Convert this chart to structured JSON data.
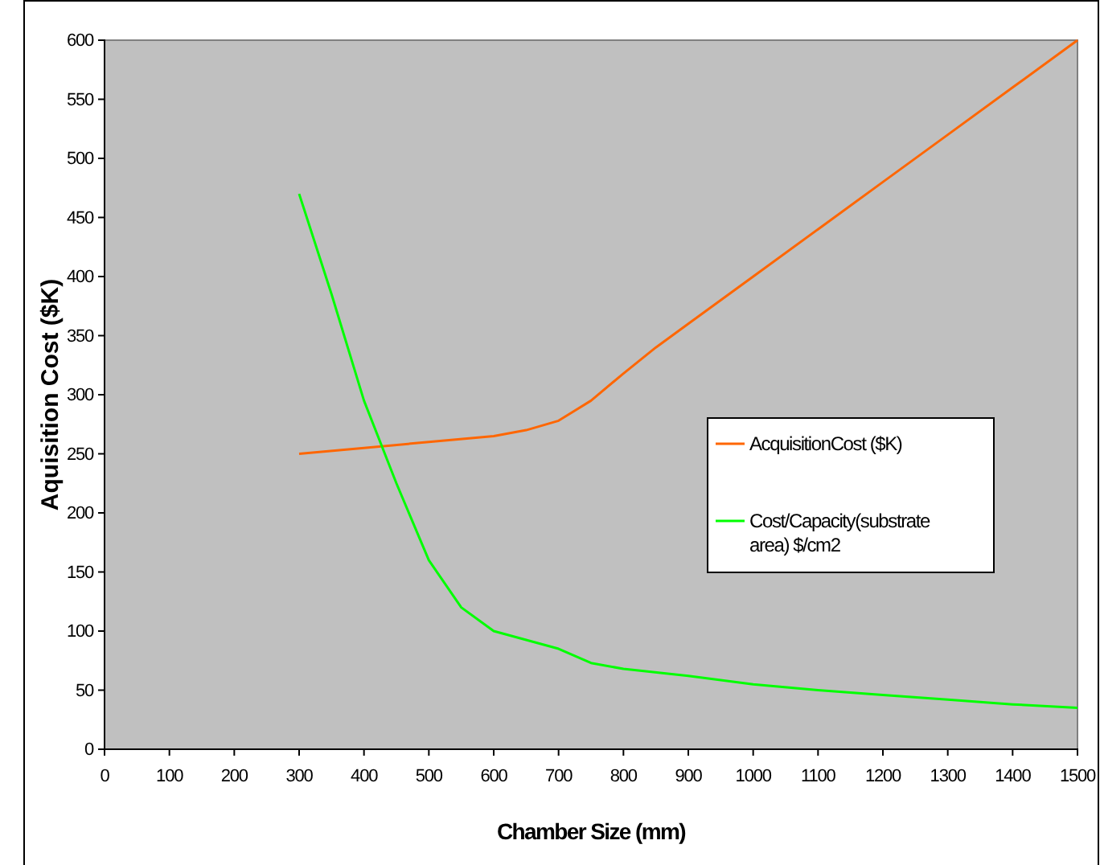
{
  "chart_data": {
    "type": "line",
    "xlabel": "Chamber Size (mm)",
    "ylabel": "Aquisition Cost ($K)",
    "xlim": [
      0,
      1500
    ],
    "xticks": [
      0,
      100,
      200,
      300,
      400,
      500,
      600,
      700,
      800,
      900,
      1000,
      1100,
      1200,
      1300,
      1400,
      1500
    ],
    "ylim": [
      0,
      600
    ],
    "yticks": [
      0,
      50,
      100,
      150,
      200,
      250,
      300,
      350,
      400,
      450,
      500,
      550,
      600
    ],
    "grid": false,
    "legend": "right",
    "marker": "none",
    "line_style": "solid",
    "series": [
      {
        "name": "AcquisitionCost ($K)",
        "color": "#ff6600",
        "x": [
          300,
          400,
          500,
          600,
          650,
          700,
          750,
          800,
          850,
          900,
          1000,
          1100,
          1200,
          1300,
          1400,
          1500
        ],
        "values": [
          250,
          255,
          260,
          265,
          270,
          278,
          295,
          318,
          340,
          360,
          400,
          440,
          480,
          520,
          560,
          600
        ]
      },
      {
        "name": "Cost/Capacity(substrate area) $/cm2",
        "color": "#00ff00",
        "x": [
          300,
          350,
          400,
          450,
          500,
          550,
          600,
          700,
          750,
          800,
          900,
          1000,
          1100,
          1200,
          1300,
          1400,
          1500
        ],
        "values": [
          470,
          385,
          295,
          225,
          160,
          120,
          100,
          85,
          73,
          68,
          62,
          55,
          50,
          46,
          42,
          38,
          35
        ]
      }
    ]
  }
}
